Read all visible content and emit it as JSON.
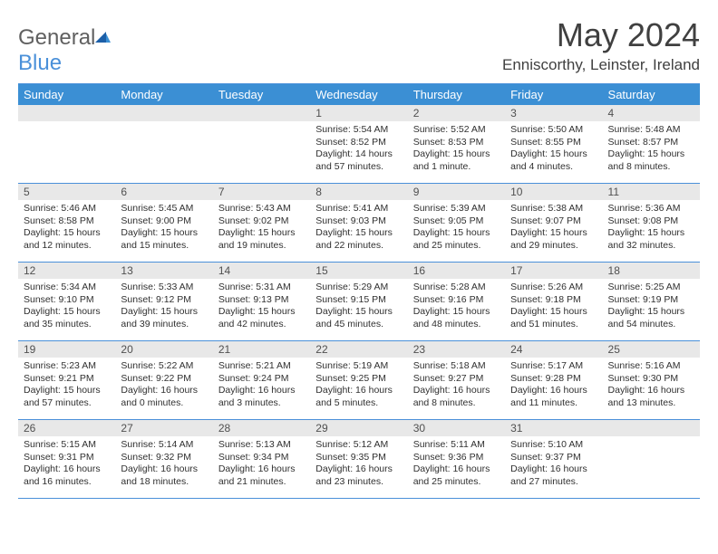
{
  "brand": {
    "text1": "General",
    "text2": "Blue"
  },
  "title": "May 2024",
  "location": "Enniscorthy, Leinster, Ireland",
  "colors": {
    "header_bar": "#3b8fd4",
    "divider": "#4a90d9",
    "daynum_bg": "#e8e8e8",
    "text": "#303030",
    "logo_gray": "#606060",
    "logo_blue": "#4a90d9"
  },
  "dow": [
    "Sunday",
    "Monday",
    "Tuesday",
    "Wednesday",
    "Thursday",
    "Friday",
    "Saturday"
  ],
  "weeks": [
    [
      null,
      null,
      null,
      {
        "n": "1",
        "sr": "5:54 AM",
        "ss": "8:52 PM",
        "dl": "14 hours and 57 minutes."
      },
      {
        "n": "2",
        "sr": "5:52 AM",
        "ss": "8:53 PM",
        "dl": "15 hours and 1 minute."
      },
      {
        "n": "3",
        "sr": "5:50 AM",
        "ss": "8:55 PM",
        "dl": "15 hours and 4 minutes."
      },
      {
        "n": "4",
        "sr": "5:48 AM",
        "ss": "8:57 PM",
        "dl": "15 hours and 8 minutes."
      }
    ],
    [
      {
        "n": "5",
        "sr": "5:46 AM",
        "ss": "8:58 PM",
        "dl": "15 hours and 12 minutes."
      },
      {
        "n": "6",
        "sr": "5:45 AM",
        "ss": "9:00 PM",
        "dl": "15 hours and 15 minutes."
      },
      {
        "n": "7",
        "sr": "5:43 AM",
        "ss": "9:02 PM",
        "dl": "15 hours and 19 minutes."
      },
      {
        "n": "8",
        "sr": "5:41 AM",
        "ss": "9:03 PM",
        "dl": "15 hours and 22 minutes."
      },
      {
        "n": "9",
        "sr": "5:39 AM",
        "ss": "9:05 PM",
        "dl": "15 hours and 25 minutes."
      },
      {
        "n": "10",
        "sr": "5:38 AM",
        "ss": "9:07 PM",
        "dl": "15 hours and 29 minutes."
      },
      {
        "n": "11",
        "sr": "5:36 AM",
        "ss": "9:08 PM",
        "dl": "15 hours and 32 minutes."
      }
    ],
    [
      {
        "n": "12",
        "sr": "5:34 AM",
        "ss": "9:10 PM",
        "dl": "15 hours and 35 minutes."
      },
      {
        "n": "13",
        "sr": "5:33 AM",
        "ss": "9:12 PM",
        "dl": "15 hours and 39 minutes."
      },
      {
        "n": "14",
        "sr": "5:31 AM",
        "ss": "9:13 PM",
        "dl": "15 hours and 42 minutes."
      },
      {
        "n": "15",
        "sr": "5:29 AM",
        "ss": "9:15 PM",
        "dl": "15 hours and 45 minutes."
      },
      {
        "n": "16",
        "sr": "5:28 AM",
        "ss": "9:16 PM",
        "dl": "15 hours and 48 minutes."
      },
      {
        "n": "17",
        "sr": "5:26 AM",
        "ss": "9:18 PM",
        "dl": "15 hours and 51 minutes."
      },
      {
        "n": "18",
        "sr": "5:25 AM",
        "ss": "9:19 PM",
        "dl": "15 hours and 54 minutes."
      }
    ],
    [
      {
        "n": "19",
        "sr": "5:23 AM",
        "ss": "9:21 PM",
        "dl": "15 hours and 57 minutes."
      },
      {
        "n": "20",
        "sr": "5:22 AM",
        "ss": "9:22 PM",
        "dl": "16 hours and 0 minutes."
      },
      {
        "n": "21",
        "sr": "5:21 AM",
        "ss": "9:24 PM",
        "dl": "16 hours and 3 minutes."
      },
      {
        "n": "22",
        "sr": "5:19 AM",
        "ss": "9:25 PM",
        "dl": "16 hours and 5 minutes."
      },
      {
        "n": "23",
        "sr": "5:18 AM",
        "ss": "9:27 PM",
        "dl": "16 hours and 8 minutes."
      },
      {
        "n": "24",
        "sr": "5:17 AM",
        "ss": "9:28 PM",
        "dl": "16 hours and 11 minutes."
      },
      {
        "n": "25",
        "sr": "5:16 AM",
        "ss": "9:30 PM",
        "dl": "16 hours and 13 minutes."
      }
    ],
    [
      {
        "n": "26",
        "sr": "5:15 AM",
        "ss": "9:31 PM",
        "dl": "16 hours and 16 minutes."
      },
      {
        "n": "27",
        "sr": "5:14 AM",
        "ss": "9:32 PM",
        "dl": "16 hours and 18 minutes."
      },
      {
        "n": "28",
        "sr": "5:13 AM",
        "ss": "9:34 PM",
        "dl": "16 hours and 21 minutes."
      },
      {
        "n": "29",
        "sr": "5:12 AM",
        "ss": "9:35 PM",
        "dl": "16 hours and 23 minutes."
      },
      {
        "n": "30",
        "sr": "5:11 AM",
        "ss": "9:36 PM",
        "dl": "16 hours and 25 minutes."
      },
      {
        "n": "31",
        "sr": "5:10 AM",
        "ss": "9:37 PM",
        "dl": "16 hours and 27 minutes."
      },
      null
    ]
  ],
  "labels": {
    "sunrise": "Sunrise:",
    "sunset": "Sunset:",
    "daylight": "Daylight:"
  }
}
